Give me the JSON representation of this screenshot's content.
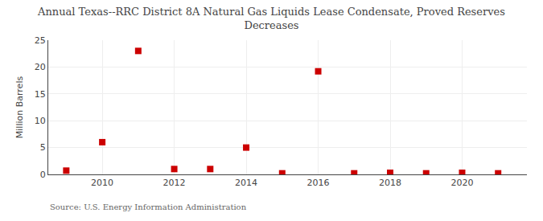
{
  "chart_data": {
    "type": "scatter",
    "title": "Annual Texas--RRC District 8A Natural Gas Liquids Lease Condensate, Proved Reserves\nDecreases",
    "ylabel": "Million Barrels",
    "annotation": "Source: U.S. Energy Information Administration",
    "x": [
      2009,
      2010,
      2011,
      2012,
      2013,
      2014,
      2015,
      2016,
      2017,
      2018,
      2019,
      2020,
      2021
    ],
    "values": [
      0.7,
      6.0,
      23.0,
      1.0,
      1.0,
      5.0,
      0.2,
      19.2,
      0.2,
      0.3,
      0.2,
      0.3,
      0.2
    ],
    "color": "#cc0000",
    "marker": "square",
    "xlim": [
      2008.5,
      2021.8
    ],
    "xticks": [
      2010,
      2012,
      2014,
      2016,
      2018,
      2020
    ],
    "ylim": [
      0,
      25
    ],
    "yticks": [
      0,
      5,
      10,
      15,
      20,
      25
    ],
    "grid": true
  }
}
